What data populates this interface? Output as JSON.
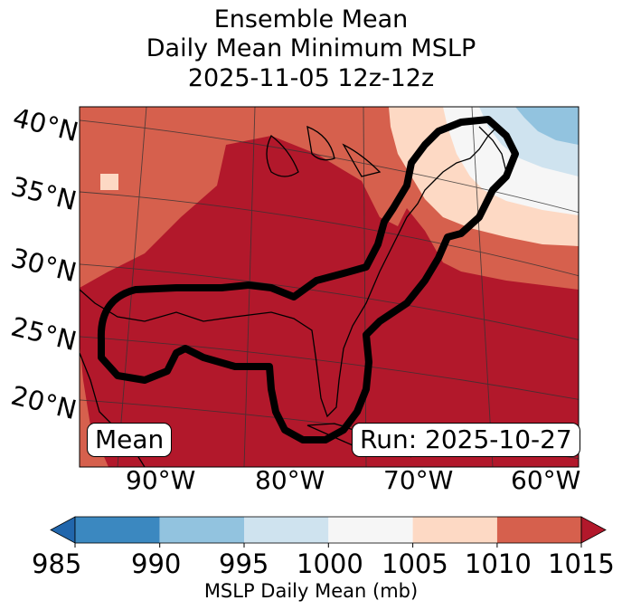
{
  "title": {
    "line1": "Ensemble Mean",
    "line2": "Daily Mean Minimum MSLP",
    "line3": "2025-11-05 12z-12z"
  },
  "map": {
    "lat_labels": [
      "40°N",
      "35°N",
      "30°N",
      "25°N",
      "20°N"
    ],
    "lon_labels": [
      "90°W",
      "80°W",
      "70°W",
      "60°W"
    ],
    "mean_label": "Mean",
    "run_label": "Run: 2025-10-27",
    "colors": {
      "c985": "#3b88c0",
      "c990": "#92c3df",
      "c995": "#cfe3ef",
      "c1000": "#f6f6f6",
      "c1005": "#fdd9c4",
      "c1010": "#d6604d",
      "c1015": "#b2182b"
    }
  },
  "colorbar": {
    "label": "MSLP Daily Mean (mb)",
    "ticks": [
      "985",
      "990",
      "995",
      "1000",
      "1005",
      "1010",
      "1015"
    ],
    "colors": [
      "#3b88c0",
      "#92c3df",
      "#cfe3ef",
      "#f6f6f6",
      "#fdd9c4",
      "#d6604d"
    ],
    "under_color": "#2166ac",
    "over_color": "#b2182b"
  }
}
